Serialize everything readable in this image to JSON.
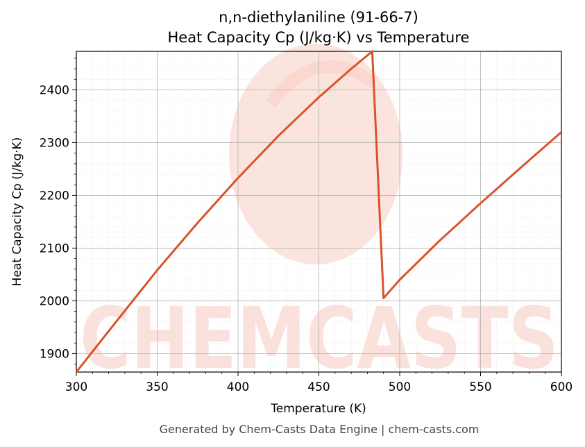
{
  "chart_data": {
    "type": "line",
    "title_line1": "n,n-diethylaniline (91-66-7)",
    "title_line2": "Heat Capacity Cp (J/kg·K) vs Temperature",
    "xlabel": "Temperature (K)",
    "ylabel": "Heat Capacity Cp (J/kg·K)",
    "xlim": [
      300,
      600
    ],
    "ylim": [
      1865,
      2473
    ],
    "x_ticks": [
      300,
      350,
      400,
      450,
      500,
      550,
      600
    ],
    "y_ticks": [
      1900,
      2000,
      2100,
      2200,
      2300,
      2400
    ],
    "grid": true,
    "series": [
      {
        "color": "#d9532a",
        "points": [
          [
            300,
            1865
          ],
          [
            325,
            1962
          ],
          [
            350,
            2058
          ],
          [
            375,
            2148
          ],
          [
            400,
            2233
          ],
          [
            425,
            2313
          ],
          [
            450,
            2386
          ],
          [
            470,
            2440
          ],
          [
            483,
            2473
          ],
          [
            490,
            2005
          ],
          [
            500,
            2040
          ],
          [
            525,
            2115
          ],
          [
            550,
            2185
          ],
          [
            575,
            2253
          ],
          [
            600,
            2320
          ]
        ]
      }
    ]
  },
  "watermark": {
    "text": "CHEMCASTS",
    "color": "#f9c4b8"
  },
  "footer": "Generated by Chem-Casts Data Engine | chem-casts.com"
}
